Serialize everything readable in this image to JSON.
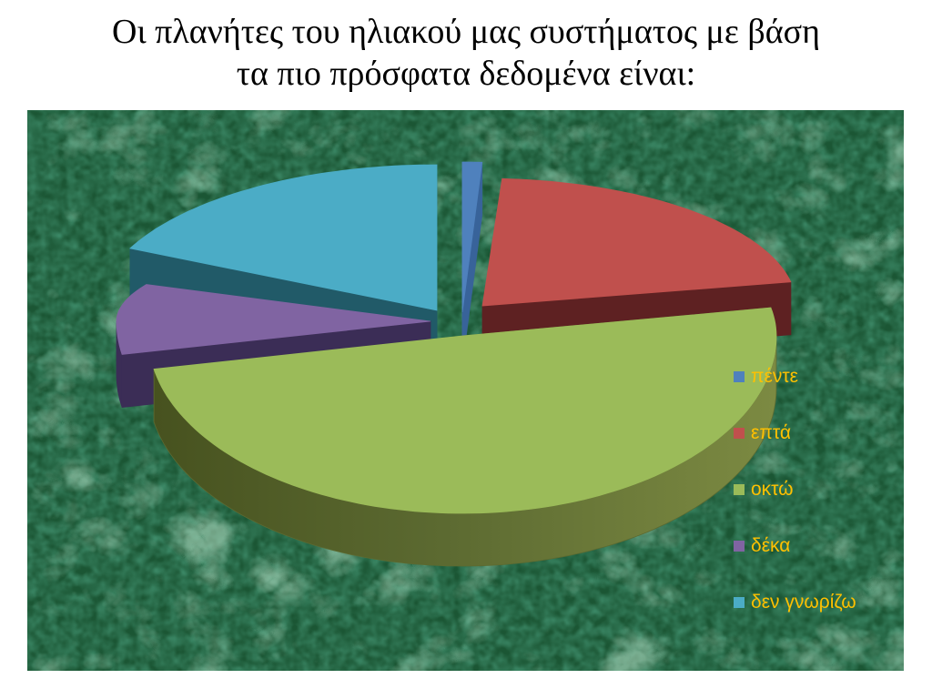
{
  "page_title": {
    "line1": "Οι πλανήτες του ηλιακού μας συστήματος με βάση",
    "line2": "τα πιο πρόσφατα δεδομένα είναι:"
  },
  "chart_data": {
    "type": "pie",
    "style": "3d-exploded-pie",
    "title": "Οι πλανήτες του ηλιακού μας συστήματος με βάση τα πιο πρόσφατα δεδομένα είναι:",
    "legend_position": "right",
    "legend_text_color": "#FFC000",
    "slices": [
      {
        "label": "πέντε",
        "value_pct": 1,
        "color": "#4F81BD"
      },
      {
        "label": "επτά",
        "value_pct": 21,
        "color": "#C0504D"
      },
      {
        "label": "οκτώ",
        "value_pct": 50,
        "color": "#9BBB59"
      },
      {
        "label": "δέκα",
        "value_pct": 10,
        "color": "#8064A2"
      },
      {
        "label": "δεν γνωρίζω",
        "value_pct": 18,
        "color": "#4BACC6"
      }
    ],
    "plot_background": {
      "texture": "green-marble",
      "base_color": "#1B5634",
      "vein_color": "#7FBE97"
    }
  }
}
